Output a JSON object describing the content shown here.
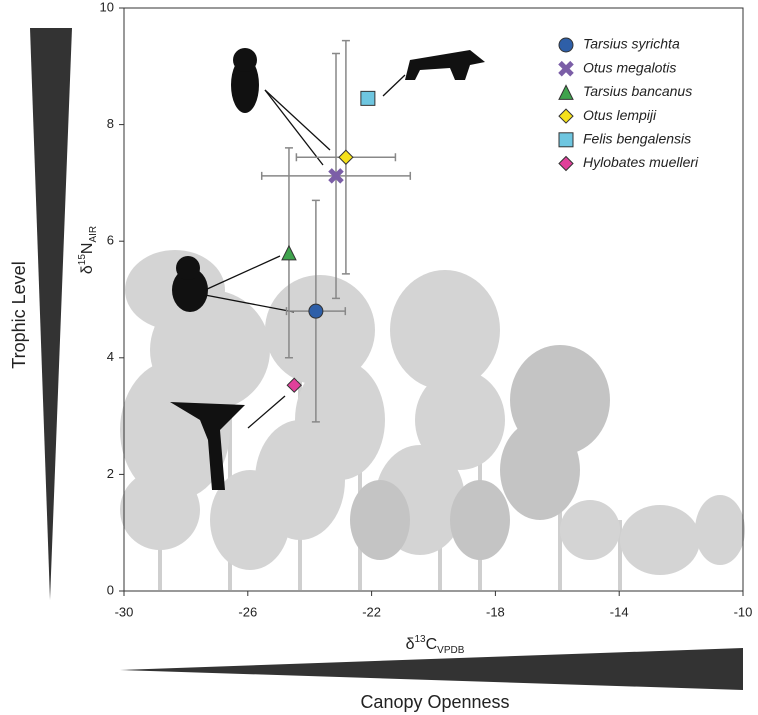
{
  "chart_data": {
    "type": "scatter",
    "x_label": [
      "δ",
      "13",
      "C",
      "VPDB"
    ],
    "y_label": [
      "δ",
      "15",
      "N",
      "AIR"
    ],
    "side_label": "Trophic Level",
    "bottom_label": "Canopy Openness",
    "xlim": [
      -30,
      -10
    ],
    "xticks": [
      -30,
      -26,
      -22,
      -18,
      -14,
      -10
    ],
    "ylim": [
      0,
      10
    ],
    "yticks": [
      0,
      2,
      4,
      6,
      8,
      10
    ],
    "series": [
      {
        "name": "Tarsius syrichta",
        "color": "#2e5fa8",
        "marker": "circle",
        "x": [
          -23.8
        ],
        "values": [
          4.8
        ],
        "x_error": [
          0.95
        ],
        "y_error": [
          1.9
        ]
      },
      {
        "name": "Otus megalotis",
        "color": "#7b5ea7",
        "marker": "x",
        "x": [
          -23.15
        ],
        "values": [
          7.12
        ],
        "x_error": [
          2.4
        ],
        "y_error": [
          2.1
        ]
      },
      {
        "name": "Tarsius bancanus",
        "color": "#3fa34d",
        "marker": "triangle",
        "x": [
          -24.67
        ],
        "values": [
          5.8
        ],
        "x_error": [
          null
        ],
        "y_error": [
          1.8
        ]
      },
      {
        "name": "Otus lempiji",
        "color": "#f5e11a",
        "marker": "diamond",
        "x": [
          -22.83
        ],
        "values": [
          7.44
        ],
        "x_error": [
          1.6
        ],
        "y_error": [
          2.0
        ]
      },
      {
        "name": "Felis bengalensis",
        "color": "#6ec6e0",
        "marker": "square",
        "x": [
          -22.12
        ],
        "values": [
          8.45
        ],
        "x_error": [
          null
        ],
        "y_error": [
          null
        ]
      },
      {
        "name": "Hylobates muelleri",
        "color": "#e0409a",
        "marker": "diamond",
        "x": [
          -24.5
        ],
        "values": [
          3.53
        ],
        "x_error": [
          null
        ],
        "y_error": [
          null
        ]
      }
    ]
  }
}
